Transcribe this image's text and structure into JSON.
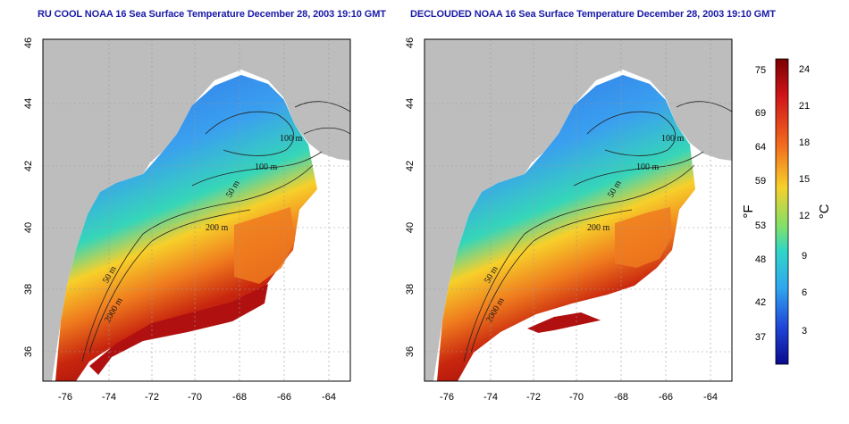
{
  "panels": [
    {
      "title": "RU COOL NOAA 16 Sea Surface Temperature December 28, 2003 19:10 GMT",
      "x_ticks": [
        "-76",
        "-74",
        "-72",
        "-70",
        "-68",
        "-66",
        "-64"
      ],
      "y_ticks": [
        "46",
        "44",
        "42",
        "40",
        "38",
        "36"
      ],
      "contour_labels": [
        "100 m",
        "100 m",
        "50 m",
        "200 m",
        "50 m",
        "2000 m"
      ]
    },
    {
      "title": "DECLOUDED NOAA 16 Sea Surface Temperature December 28, 2003 19:10 GMT",
      "x_ticks": [
        "-76",
        "-74",
        "-72",
        "-70",
        "-68",
        "-66",
        "-64"
      ],
      "y_ticks": [
        "46",
        "44",
        "42",
        "40",
        "38",
        "36"
      ],
      "contour_labels": [
        "100 m",
        "100 m",
        "50 m",
        "200 m",
        "50 m",
        "2000 m"
      ]
    }
  ],
  "colorbar": {
    "fahrenheit_label": "°F",
    "celsius_label": "°C",
    "fahrenheit_ticks": [
      "75",
      "69",
      "64",
      "59",
      "53",
      "48",
      "42",
      "37"
    ],
    "celsius_ticks": [
      "24",
      "21",
      "18",
      "15",
      "12",
      "9",
      "6",
      "3"
    ],
    "celsius_range": [
      0,
      25
    ]
  },
  "colors": {
    "land": "#bdbdbd",
    "title": "#1a1aa8",
    "cold": "#0a0a8c",
    "cool": "#3aa0ef",
    "mild": "#36d6b8",
    "warm": "#f7d02a",
    "hot": "#ef7a1e",
    "hottest": "#9e0a0a"
  }
}
